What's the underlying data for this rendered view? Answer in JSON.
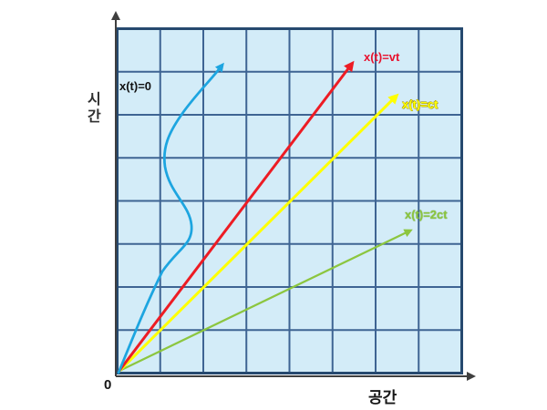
{
  "diagram": {
    "type": "spacetime-diagram",
    "y_axis_label": "시간",
    "x_axis_label": "공간",
    "origin_label": "0",
    "grid": {
      "rows": 8,
      "cols": 8,
      "cell_fill": "#d3ecf8",
      "inner_line_color": "#3e6493",
      "border_color": "#26496f"
    },
    "axis_color": "#3f3f3f",
    "worldlines": [
      {
        "label": "x(t)=0",
        "color": "#1da5e0",
        "shape": "s-curve",
        "description": "worldline at rest"
      },
      {
        "label": "x(t)=vt",
        "color": "#ed1c24",
        "shape": "straight",
        "description": "subluminal worldline"
      },
      {
        "label": "x(t)=ct",
        "color": "#ffff00",
        "shape": "straight",
        "description": "light worldline"
      },
      {
        "label": "x(t)=2ct",
        "color": "#8cc63f",
        "shape": "straight",
        "description": "superluminal worldline"
      }
    ]
  }
}
